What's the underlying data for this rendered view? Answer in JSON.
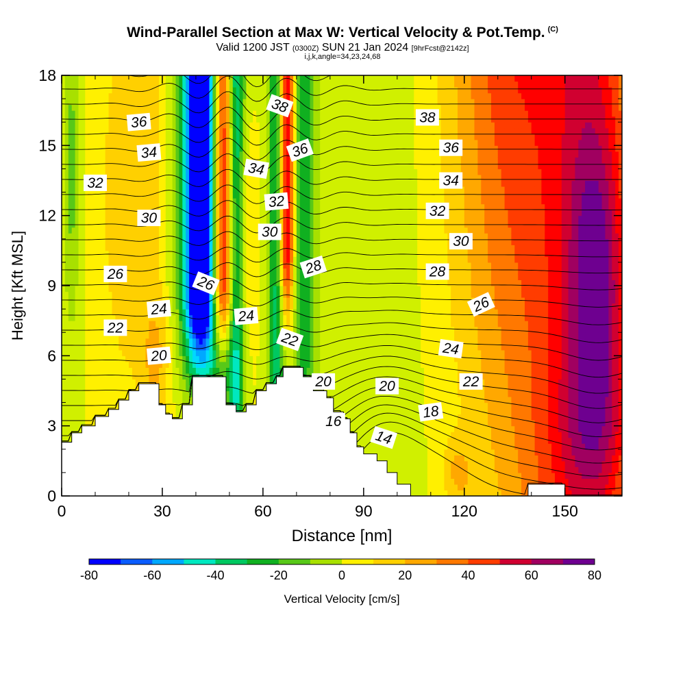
{
  "title": "Wind-Parallel Section at Max W: Vertical Velocity & Pot.Temp.",
  "copyright": "(C)",
  "valid_main": "Valid 1200 JST",
  "valid_utc": "(0300Z)",
  "valid_date": "SUN 21 Jan 2024",
  "forecast": "[9hrFcst@2142z]",
  "subtitle": "i,j,k,angle=34,23,24,68",
  "chart_data": {
    "type": "heatmap",
    "xlabel": "Distance [nm]",
    "ylabel": "Height [Kft MSL]",
    "xlim": [
      0,
      167
    ],
    "ylim": [
      0,
      18
    ],
    "x_ticks": [
      "0",
      "30",
      "60",
      "90",
      "120",
      "150"
    ],
    "y_ticks": [
      "0",
      "3",
      "6",
      "9",
      "12",
      "15",
      "18"
    ],
    "colorbar": {
      "label": "Vertical Velocity [cm/s]",
      "range": [
        -80,
        80
      ],
      "tick_labels": [
        "-80",
        "-60",
        "-40",
        "-20",
        "0",
        "20",
        "40",
        "60",
        "80"
      ],
      "colors": [
        "#0000ff",
        "#0a5cff",
        "#00a8ff",
        "#00d8ff",
        "#00e8c0",
        "#00c860",
        "#10b020",
        "#58c818",
        "#a8e000",
        "#d0f000",
        "#fff000",
        "#ffd000",
        "#ffa800",
        "#ff7800",
        "#ff3c00",
        "#ff0000",
        "#d00030",
        "#a00060",
        "#6e0090"
      ]
    },
    "contour_labels": [
      {
        "text": "36",
        "x": 23,
        "y": 16.0,
        "angle": -5
      },
      {
        "text": "34",
        "x": 26,
        "y": 14.7,
        "angle": -5
      },
      {
        "text": "32",
        "x": 10,
        "y": 13.4,
        "angle": 0
      },
      {
        "text": "30",
        "x": 26,
        "y": 11.9,
        "angle": 0
      },
      {
        "text": "26",
        "x": 16,
        "y": 9.5,
        "angle": 0
      },
      {
        "text": "24",
        "x": 29,
        "y": 8.0,
        "angle": -5
      },
      {
        "text": "22",
        "x": 16,
        "y": 7.2,
        "angle": 0
      },
      {
        "text": "20",
        "x": 29,
        "y": 6.0,
        "angle": -5
      },
      {
        "text": "26",
        "x": 43,
        "y": 9.1,
        "angle": 22
      },
      {
        "text": "24",
        "x": 55,
        "y": 7.7,
        "angle": -5
      },
      {
        "text": "22",
        "x": 68,
        "y": 6.7,
        "angle": 20
      },
      {
        "text": "20",
        "x": 78,
        "y": 4.9,
        "angle": 0
      },
      {
        "text": "16",
        "x": 81,
        "y": 3.2,
        "angle": 0
      },
      {
        "text": "14",
        "x": 96,
        "y": 2.5,
        "angle": 18
      },
      {
        "text": "38",
        "x": 65,
        "y": 16.7,
        "angle": 20
      },
      {
        "text": "36",
        "x": 71,
        "y": 14.8,
        "angle": -20
      },
      {
        "text": "34",
        "x": 58,
        "y": 14.0,
        "angle": 10
      },
      {
        "text": "32",
        "x": 64,
        "y": 12.6,
        "angle": -5
      },
      {
        "text": "30",
        "x": 62,
        "y": 11.3,
        "angle": 0
      },
      {
        "text": "28",
        "x": 75,
        "y": 9.8,
        "angle": -18
      },
      {
        "text": "38",
        "x": 109,
        "y": 16.2,
        "angle": 0
      },
      {
        "text": "36",
        "x": 116,
        "y": 14.9,
        "angle": 0
      },
      {
        "text": "34",
        "x": 116,
        "y": 13.5,
        "angle": 0
      },
      {
        "text": "32",
        "x": 112,
        "y": 12.2,
        "angle": 0
      },
      {
        "text": "30",
        "x": 119,
        "y": 10.9,
        "angle": 0
      },
      {
        "text": "28",
        "x": 112,
        "y": 9.6,
        "angle": 0
      },
      {
        "text": "26",
        "x": 125,
        "y": 8.2,
        "angle": -25
      },
      {
        "text": "24",
        "x": 116,
        "y": 6.3,
        "angle": 8
      },
      {
        "text": "22",
        "x": 122,
        "y": 4.9,
        "angle": 0
      },
      {
        "text": "20",
        "x": 97,
        "y": 4.7,
        "angle": 0
      },
      {
        "text": "18",
        "x": 110,
        "y": 3.6,
        "angle": -8
      }
    ]
  }
}
